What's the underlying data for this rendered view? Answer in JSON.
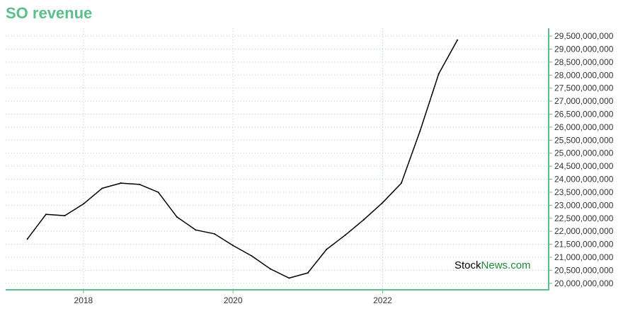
{
  "chart_data": {
    "type": "line",
    "title": "SO revenue",
    "watermark": {
      "part1": "Stock",
      "part2": "News.com"
    },
    "xlabel": "",
    "ylabel": "",
    "x_ticks": [
      "2018",
      "2020",
      "2022"
    ],
    "y_ticks": [
      "20,000,000,000",
      "20,500,000,000",
      "21,000,000,000",
      "21,500,000,000",
      "22,000,000,000",
      "22,500,000,000",
      "23,000,000,000",
      "23,500,000,000",
      "24,000,000,000",
      "24,500,000,000",
      "25,000,000,000",
      "25,500,000,000",
      "26,000,000,000",
      "26,500,000,000",
      "27,000,000,000",
      "27,500,000,000",
      "28,000,000,000",
      "28,500,000,000",
      "29,000,000,000",
      "29,500,000,000"
    ],
    "ylim": [
      19750000000,
      29800000000
    ],
    "xlim": [
      2016.96,
      2024.22
    ],
    "grid": true,
    "colors": {
      "title": "#5abf8a",
      "axis": "#5abf8a",
      "line": "#000000",
      "grid": "#a8d8c0",
      "watermark_dark": "#000000",
      "watermark_green": "#1a8a3a"
    },
    "series": [
      {
        "x": [
          2017.25,
          2017.5,
          2017.75,
          2018.0,
          2018.25,
          2018.5,
          2018.75,
          2019.0,
          2019.25,
          2019.5,
          2019.75,
          2020.0,
          2020.25,
          2020.5,
          2020.75,
          2021.0,
          2021.25,
          2021.5,
          2021.75,
          2022.0,
          2022.25,
          2022.5,
          2022.75,
          2023.0
        ],
        "values": [
          21700000000,
          22650000000,
          22600000000,
          23050000000,
          23650000000,
          23850000000,
          23800000000,
          23500000000,
          22550000000,
          22050000000,
          21900000000,
          21450000000,
          21050000000,
          20550000000,
          20200000000,
          20400000000,
          21300000000,
          21850000000,
          22450000000,
          23100000000,
          23850000000,
          25850000000,
          28050000000,
          29350000000
        ]
      }
    ]
  }
}
